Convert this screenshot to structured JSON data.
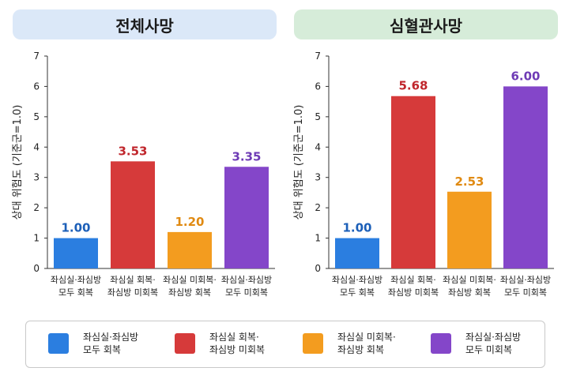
{
  "colors": {
    "blue": "#2b7ee0",
    "red": "#d63a3a",
    "orange": "#f39c1f",
    "purple": "#8446c9",
    "red_label": "#c0262c",
    "purple_label": "#6e3bb5"
  },
  "legend": [
    {
      "label": "좌심실·좌심방\n모두 회복",
      "color": "#2b7ee0"
    },
    {
      "label": "좌심실 회복·\n좌심방 미회복",
      "color": "#d63a3a"
    },
    {
      "label": "좌심실 미회복·\n좌심방 회복",
      "color": "#f39c1f"
    },
    {
      "label": "좌심실·좌심방\n모두 미회복",
      "color": "#8446c9"
    }
  ],
  "chart_data": [
    {
      "type": "bar",
      "title": "전체사망",
      "ylabel": "상대 위험도 (기준군=1.0)",
      "ylim": [
        0,
        7
      ],
      "yticks": [
        0,
        1,
        2,
        3,
        4,
        5,
        6,
        7
      ],
      "categories": [
        "좌심실·좌심방\n모두 회복",
        "좌심실 회복·\n좌심방 미회복",
        "좌심실 미회복·\n좌심방 회복",
        "좌심실·좌심방\n모두 미회복"
      ],
      "values": [
        1.0,
        3.53,
        1.2,
        3.35
      ],
      "value_labels": [
        "1.00",
        "3.53",
        "1.20",
        "3.35"
      ],
      "bar_colors": [
        "#2b7ee0",
        "#d63a3a",
        "#f39c1f",
        "#8446c9"
      ],
      "label_colors": [
        "#1c5fb8",
        "#c0262c",
        "#e08a12",
        "#6e3bb5"
      ]
    },
    {
      "type": "bar",
      "title": "심혈관사망",
      "ylabel": "상대 위험도 (기준군=1.0)",
      "ylim": [
        0,
        7
      ],
      "yticks": [
        0,
        1,
        2,
        3,
        4,
        5,
        6,
        7
      ],
      "categories": [
        "좌심실·좌심방\n모두 회복",
        "좌심실 회복·\n좌심방 미회복",
        "좌심실 미회복·\n좌심방 회복",
        "좌심실·좌심방\n모두 미회복"
      ],
      "values": [
        1.0,
        5.68,
        2.53,
        6.0
      ],
      "value_labels": [
        "1.00",
        "5.68",
        "2.53",
        "6.00"
      ],
      "bar_colors": [
        "#2b7ee0",
        "#d63a3a",
        "#f39c1f",
        "#8446c9"
      ],
      "label_colors": [
        "#1c5fb8",
        "#c0262c",
        "#e08a12",
        "#6e3bb5"
      ]
    }
  ]
}
